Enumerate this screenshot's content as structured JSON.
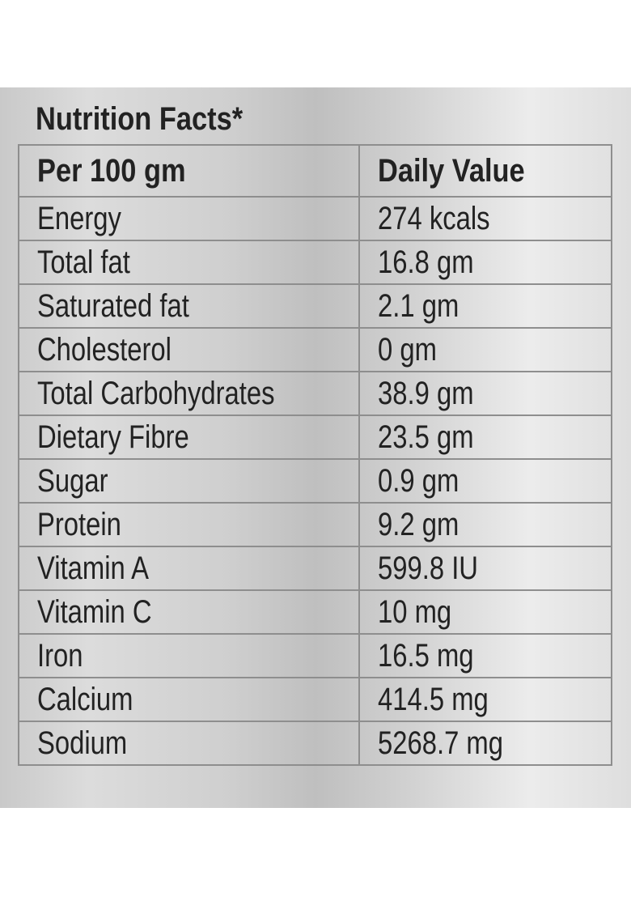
{
  "title": "Nutrition Facts*",
  "headers": {
    "nutrient": "Per 100 gm",
    "value": "Daily Value"
  },
  "rows": [
    {
      "nutrient": "Energy",
      "value": "274 kcals"
    },
    {
      "nutrient": "Total fat",
      "value": "16.8 gm"
    },
    {
      "nutrient": "Saturated fat",
      "value": "2.1 gm"
    },
    {
      "nutrient": "Cholesterol",
      "value": "0 gm"
    },
    {
      "nutrient": "Total Carbohydrates",
      "value": "38.9 gm"
    },
    {
      "nutrient": "Dietary Fibre",
      "value": "23.5 gm"
    },
    {
      "nutrient": "Sugar",
      "value": "0.9 gm"
    },
    {
      "nutrient": "Protein",
      "value": "9.2 gm"
    },
    {
      "nutrient": "Vitamin A",
      "value": "599.8 IU"
    },
    {
      "nutrient": "Vitamin C",
      "value": "10 mg"
    },
    {
      "nutrient": "Iron",
      "value": "16.5 mg"
    },
    {
      "nutrient": "Calcium",
      "value": "414.5 mg"
    },
    {
      "nutrient": "Sodium",
      "value": "5268.7 mg"
    }
  ]
}
